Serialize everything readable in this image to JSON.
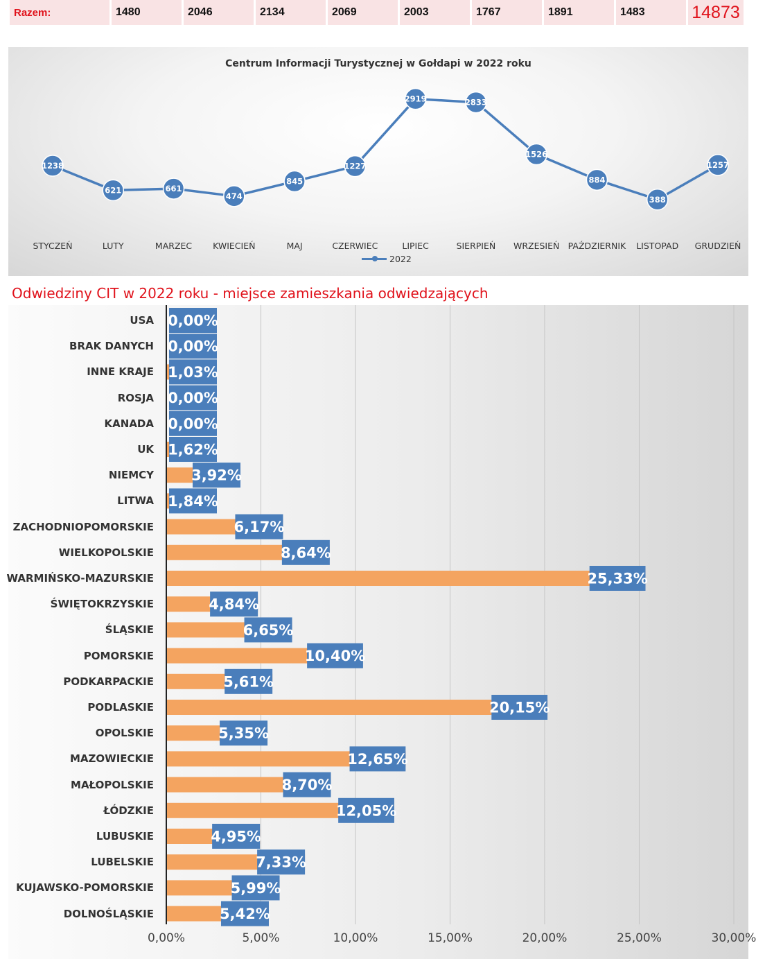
{
  "totals": {
    "label": "Razem:",
    "values": [
      "1480",
      "2046",
      "2134",
      "2069",
      "2003",
      "1767",
      "1891",
      "1483"
    ],
    "grand_total": "14873",
    "accent_color": "#e0121b",
    "cell_bg": "#f9e3e4"
  },
  "section_heading": "Odwiedziny CIT w 2022 roku - miejsce zamieszkania odwiedzających",
  "chart_data": [
    {
      "type": "line",
      "title": "Centrum Informacji Turystycznej w Gołdapi w 2022 roku",
      "categories": [
        "STYCZEŃ",
        "LUTY",
        "MARZEC",
        "KWIECIEŃ",
        "MAJ",
        "CZERWIEC",
        "LIPIEC",
        "SIERPIEŃ",
        "WRZESIEŃ",
        "PAŹDZIERNIK",
        "LISTOPAD",
        "GRUDZIEŃ"
      ],
      "series": [
        {
          "name": "2022",
          "values": [
            1238,
            621,
            661,
            474,
            845,
            1227,
            2919,
            2833,
            1526,
            884,
            388,
            1257
          ],
          "color": "#4a7ebb"
        }
      ],
      "ylim": [
        0,
        3000
      ],
      "grid": false,
      "legend": "bottom"
    },
    {
      "type": "bar",
      "orientation": "horizontal",
      "categories": [
        "USA",
        "BRAK DANYCH",
        "INNE KRAJE",
        "ROSJA",
        "KANADA",
        "UK",
        "NIEMCY",
        "LITWA",
        "ZACHODNIOPOMORSKIE",
        "WIELKOPOLSKIE",
        "WARMIŃSKO-MAZURSKIE",
        "ŚWIĘTOKRZYSKIE",
        "ŚLĄSKIE",
        "POMORSKIE",
        "PODKARPACKIE",
        "PODLASKIE",
        "OPOLSKIE",
        "MAZOWIECKIE",
        "MAŁOPOLSKIE",
        "ŁÓDZKIE",
        "LUBUSKIE",
        "LUBELSKIE",
        "KUJAWSKO-POMORSKIE",
        "DOLNOŚLĄSKIE"
      ],
      "values": [
        0.0,
        0.0,
        1.03,
        0.0,
        0.0,
        1.62,
        3.92,
        1.84,
        6.17,
        8.64,
        25.33,
        4.84,
        6.65,
        10.4,
        5.61,
        20.15,
        5.35,
        12.65,
        8.7,
        12.05,
        4.95,
        7.33,
        5.99,
        5.42
      ],
      "data_labels": [
        "0,00%",
        "0,00%",
        "1,03%",
        "0,00%",
        "0,00%",
        "1,62%",
        "3,92%",
        "1,84%",
        "6,17%",
        "8,64%",
        "25,33%",
        "4,84%",
        "6,65%",
        "10,40%",
        "5,61%",
        "20,15%",
        "5,35%",
        "12,65%",
        "8,70%",
        "12,05%",
        "4,95%",
        "7,33%",
        "5,99%",
        "5,42%"
      ],
      "xlim": [
        0,
        30
      ],
      "x_ticks": [
        "0,00%",
        "5,00%",
        "10,00%",
        "15,00%",
        "20,00%",
        "25,00%",
        "30,00%"
      ],
      "grid": true,
      "bar_color": "#f4a460",
      "label_color": "#4a7ebb"
    }
  ]
}
